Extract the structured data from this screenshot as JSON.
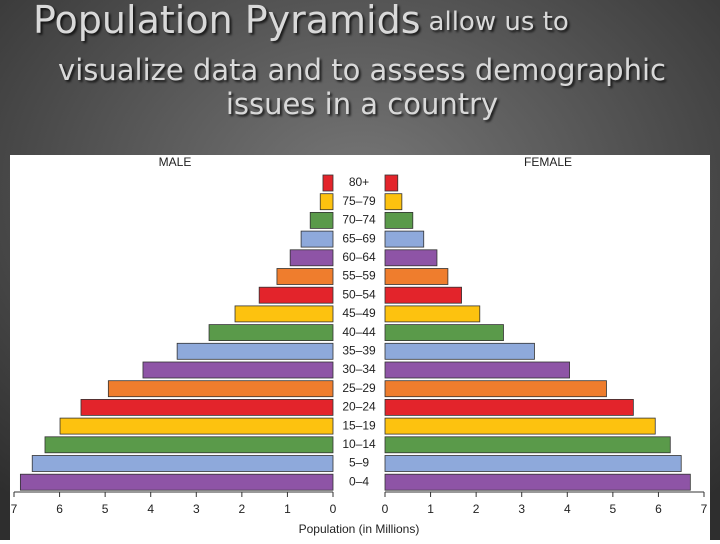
{
  "title": {
    "lead": "Population Pyramids",
    "rest": "allow us to",
    "lines": [
      "visualize data and to assess demographic",
      "issues in a country"
    ]
  },
  "chart_data": {
    "type": "pyramid",
    "categories": [
      "80+",
      "75–79",
      "70–74",
      "65–69",
      "60–64",
      "55–59",
      "50–54",
      "45–49",
      "40–44",
      "35–39",
      "30–34",
      "25–29",
      "20–24",
      "15–19",
      "10–14",
      "5–9",
      "0–4"
    ],
    "colors": [
      "#e3242b",
      "#fdc20f",
      "#5a9a4a",
      "#8ea9db",
      "#8e54a6",
      "#ef7d2d",
      "#e3242b",
      "#fdc20f",
      "#5a9a4a",
      "#8ea9db",
      "#8e54a6",
      "#ef7d2d",
      "#e3242b",
      "#fdc20f",
      "#5a9a4a",
      "#8ea9db",
      "#8e54a6"
    ],
    "series": [
      {
        "name": "MALE",
        "values": [
          0.22,
          0.28,
          0.5,
          0.7,
          0.94,
          1.23,
          1.62,
          2.15,
          2.72,
          3.42,
          4.17,
          4.93,
          5.53,
          5.99,
          6.32,
          6.6,
          6.86
        ]
      },
      {
        "name": "FEMALE",
        "values": [
          0.28,
          0.37,
          0.61,
          0.85,
          1.14,
          1.38,
          1.68,
          2.08,
          2.6,
          3.28,
          4.05,
          4.86,
          5.45,
          5.93,
          6.26,
          6.5,
          6.7
        ]
      }
    ],
    "x_label": "Population (in Millions)",
    "xlim": [
      0,
      7
    ],
    "xticks": [
      0,
      1,
      2,
      3,
      4,
      5,
      6,
      7
    ]
  }
}
